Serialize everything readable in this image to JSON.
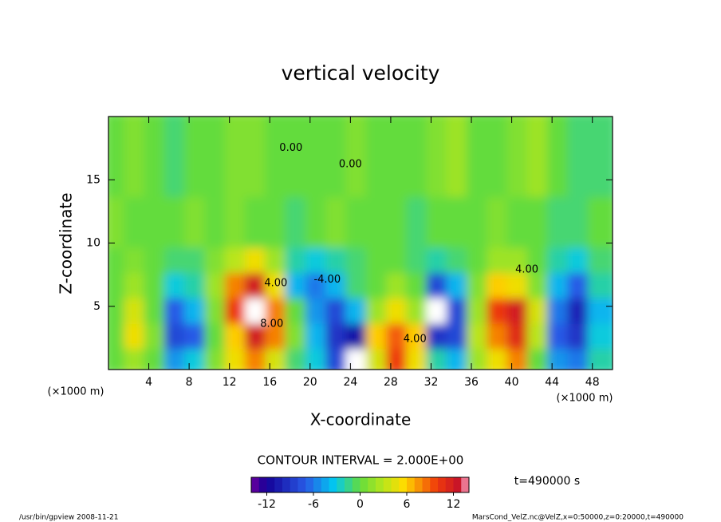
{
  "chart_data": {
    "type": "contour",
    "title": "vertical velocity",
    "x_label": "X-coordinate",
    "y_label": "Z-coordinate",
    "x_unit_left": "(×1000 m)",
    "x_unit_right": "(×1000 m)",
    "contour_interval": "CONTOUR INTERVAL = 2.000E+00",
    "time_label": "t=490000 s",
    "footer_left": "/usr/bin/gpview  2008-11-21",
    "footer_right": "MarsCond_VelZ.nc@VelZ,x=0:50000,z=0:20000,t=490000",
    "xlim": [
      0,
      50
    ],
    "ylim": [
      0,
      20
    ],
    "xticks": [
      4,
      8,
      12,
      16,
      20,
      24,
      28,
      32,
      36,
      40,
      44,
      48
    ],
    "yticks": [
      5,
      10,
      15
    ],
    "x_edges": [
      0,
      2,
      4,
      6,
      8,
      10,
      12,
      14,
      16,
      18,
      20,
      22,
      24,
      26,
      28,
      30,
      32,
      34,
      36,
      38,
      40,
      42,
      44,
      46,
      48,
      50
    ],
    "y_edges": [
      0,
      2,
      4,
      6,
      8,
      10,
      14,
      20
    ],
    "z": [
      [
        0,
        2,
        0,
        -5,
        -3,
        1,
        5,
        8,
        4,
        -1,
        -3,
        -8,
        -15,
        4,
        10,
        5,
        -2,
        -4,
        2,
        5,
        8,
        0,
        -5,
        -6,
        -2
      ],
      [
        0,
        5,
        1,
        -8,
        -7,
        0,
        6,
        12,
        8,
        1,
        -4,
        -9,
        -11,
        6,
        9,
        6,
        -9,
        -8,
        3,
        8,
        11,
        3,
        -7,
        -9,
        -3
      ],
      [
        0,
        4,
        0,
        -7,
        -4,
        1,
        10,
        16,
        8,
        0,
        -5,
        -8,
        -4,
        2,
        5,
        2,
        -16,
        -8,
        2,
        10,
        12,
        4,
        -6,
        -10,
        -4
      ],
      [
        0,
        2,
        0,
        -3,
        -2,
        2,
        8,
        12,
        5,
        -4,
        -6,
        -4,
        -1,
        0,
        2,
        0,
        -8,
        -4,
        1,
        6,
        5,
        1,
        -4,
        -7,
        -2
      ],
      [
        0,
        1,
        0,
        -1,
        -1,
        1,
        3,
        5,
        2,
        -2,
        -3,
        -2,
        -1,
        0,
        0,
        -1,
        -2,
        -1,
        0,
        2,
        2,
        0,
        -2,
        -3,
        -1
      ],
      [
        1,
        0,
        0,
        0,
        1,
        0,
        1,
        0,
        0,
        -1,
        0,
        1,
        0,
        0,
        0,
        -1,
        0,
        0,
        0,
        1,
        0,
        0,
        -1,
        -1,
        0
      ],
      [
        0,
        1,
        0,
        -1,
        0,
        0,
        1,
        1,
        0,
        0,
        0,
        0,
        1,
        0,
        0,
        0,
        1,
        2,
        0,
        0,
        1,
        2,
        0,
        -1,
        -1
      ]
    ],
    "contour_labels": [
      {
        "x": 18.1,
        "y": 17.5,
        "label": "0.00"
      },
      {
        "x": 24.0,
        "y": 16.2,
        "label": "0.00"
      },
      {
        "x": 16.6,
        "y": 6.8,
        "label": "4.00"
      },
      {
        "x": 16.2,
        "y": 3.6,
        "label": "8.00"
      },
      {
        "x": 21.7,
        "y": 7.1,
        "label": "-4.00"
      },
      {
        "x": 41.5,
        "y": 7.9,
        "label": "4.00"
      },
      {
        "x": 30.4,
        "y": 2.4,
        "label": "4.00"
      }
    ],
    "colorbar": {
      "range": [
        -14,
        14
      ],
      "ticks": [
        -12,
        -6,
        0,
        6,
        12
      ]
    }
  }
}
